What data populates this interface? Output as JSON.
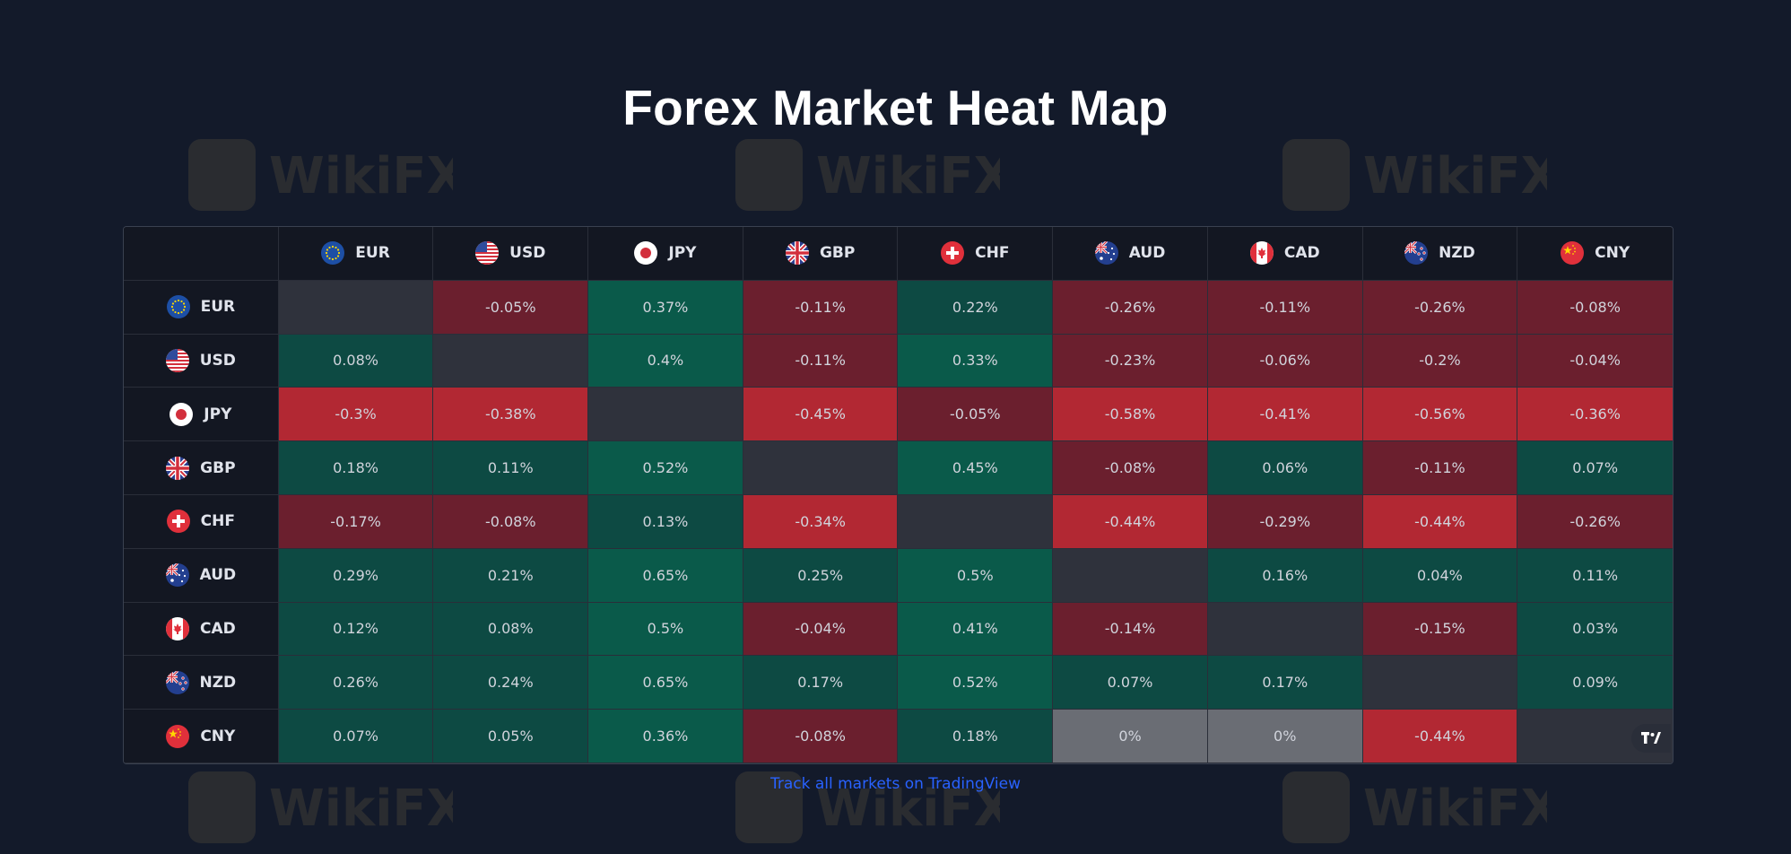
{
  "page": {
    "title": "Forex Market Heat Map",
    "link_text": "Track all markets on TradingView",
    "watermark_text": "WikiFX"
  },
  "heatmap": {
    "currencies": [
      "EUR",
      "USD",
      "JPY",
      "GBP",
      "CHF",
      "AUD",
      "CAD",
      "NZD",
      "CNY"
    ],
    "rows": [
      {
        "currency": "EUR",
        "values": [
          "",
          "-0.05%",
          "0.37%",
          "-0.11%",
          "0.22%",
          "-0.26%",
          "-0.11%",
          "-0.26%",
          "-0.08%"
        ]
      },
      {
        "currency": "USD",
        "values": [
          "0.08%",
          "",
          "0.4%",
          "-0.11%",
          "0.33%",
          "-0.23%",
          "-0.06%",
          "-0.2%",
          "-0.04%"
        ]
      },
      {
        "currency": "JPY",
        "values": [
          "-0.3%",
          "-0.38%",
          "",
          "-0.45%",
          "-0.05%",
          "-0.58%",
          "-0.41%",
          "-0.56%",
          "-0.36%"
        ]
      },
      {
        "currency": "GBP",
        "values": [
          "0.18%",
          "0.11%",
          "0.52%",
          "",
          "0.45%",
          "-0.08%",
          "0.06%",
          "-0.11%",
          "0.07%"
        ]
      },
      {
        "currency": "CHF",
        "values": [
          "-0.17%",
          "-0.08%",
          "0.13%",
          "-0.34%",
          "",
          "-0.44%",
          "-0.29%",
          "-0.44%",
          "-0.26%"
        ]
      },
      {
        "currency": "AUD",
        "values": [
          "0.29%",
          "0.21%",
          "0.65%",
          "0.25%",
          "0.5%",
          "",
          "0.16%",
          "0.04%",
          "0.11%"
        ]
      },
      {
        "currency": "CAD",
        "values": [
          "0.12%",
          "0.08%",
          "0.5%",
          "-0.04%",
          "0.41%",
          "-0.14%",
          "",
          "-0.15%",
          "0.03%"
        ]
      },
      {
        "currency": "NZD",
        "values": [
          "0.26%",
          "0.24%",
          "0.65%",
          "0.17%",
          "0.52%",
          "0.07%",
          "0.17%",
          "",
          "0.09%"
        ]
      },
      {
        "currency": "CNY",
        "values": [
          "0.07%",
          "0.05%",
          "0.36%",
          "-0.08%",
          "0.18%",
          "0%",
          "0%",
          "-0.44%",
          ""
        ]
      }
    ],
    "colors": {
      "positive_weak": "#0d4a43",
      "positive_strong": "#0a5a4a",
      "negative_weak": "#6b1f2e",
      "negative_mid": "#8f2433",
      "negative_strong": "#b22833",
      "zero": "#6a6d74",
      "diagonal": "#2f323c"
    }
  },
  "colors": {
    "background": "#131a2a",
    "link": "#2962ff",
    "title": "#ffffff"
  }
}
